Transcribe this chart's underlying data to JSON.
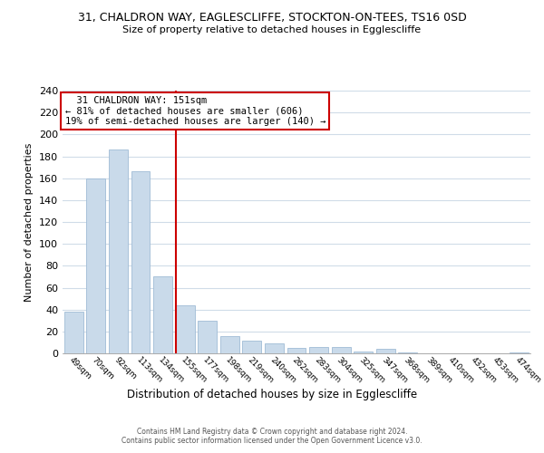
{
  "title_line1": "31, CHALDRON WAY, EAGLESCLIFFE, STOCKTON-ON-TEES, TS16 0SD",
  "title_line2": "Size of property relative to detached houses in Egglescliffe",
  "xlabel": "Distribution of detached houses by size in Egglescliffe",
  "ylabel": "Number of detached properties",
  "bar_labels": [
    "49sqm",
    "70sqm",
    "92sqm",
    "113sqm",
    "134sqm",
    "155sqm",
    "177sqm",
    "198sqm",
    "219sqm",
    "240sqm",
    "262sqm",
    "283sqm",
    "304sqm",
    "325sqm",
    "347sqm",
    "368sqm",
    "389sqm",
    "410sqm",
    "432sqm",
    "453sqm",
    "474sqm"
  ],
  "bar_heights": [
    38,
    160,
    186,
    166,
    70,
    44,
    30,
    16,
    12,
    9,
    5,
    6,
    6,
    2,
    4,
    1,
    0,
    0,
    0,
    0,
    1
  ],
  "bar_color": "#c9daea",
  "bar_edge_color": "#a0bcd6",
  "marker_index": 5,
  "marker_line_color": "#cc0000",
  "ylim": [
    0,
    240
  ],
  "yticks": [
    0,
    20,
    40,
    60,
    80,
    100,
    120,
    140,
    160,
    180,
    200,
    220,
    240
  ],
  "annotation_title": "31 CHALDRON WAY: 151sqm",
  "annotation_line1": "← 81% of detached houses are smaller (606)",
  "annotation_line2": "19% of semi-detached houses are larger (140) →",
  "annotation_box_color": "#ffffff",
  "annotation_box_edge": "#cc0000",
  "footer_line1": "Contains HM Land Registry data © Crown copyright and database right 2024.",
  "footer_line2": "Contains public sector information licensed under the Open Government Licence v3.0.",
  "background_color": "#ffffff",
  "grid_color": "#d0dce8"
}
